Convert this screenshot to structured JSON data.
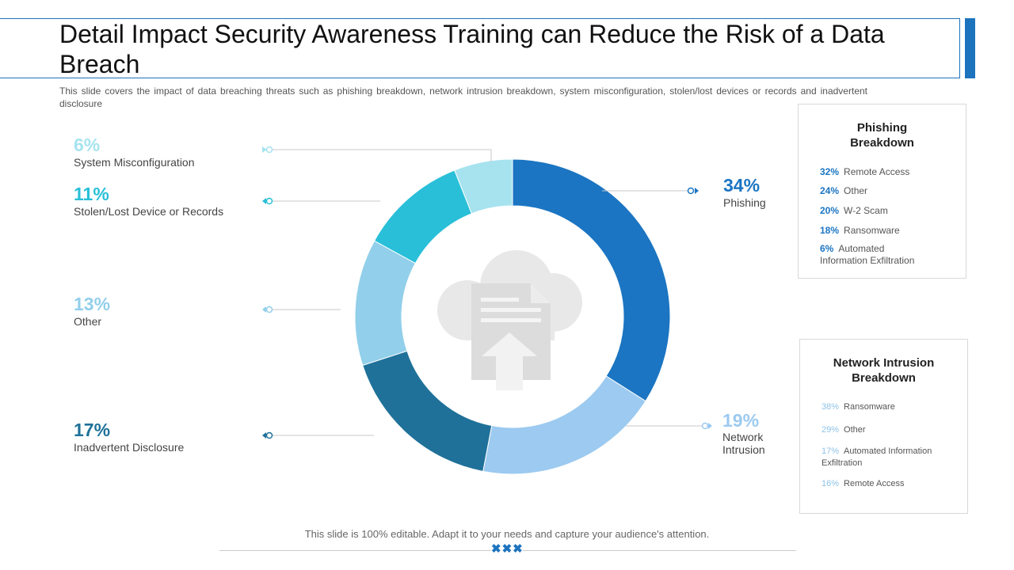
{
  "title": "Detail Impact Security Awareness Training can Reduce the Risk of a Data Breach",
  "subtitle": "This slide covers the impact of data breaching threats such as phishing breakdown, network intrusion breakdown, system misconfiguration, stolen/lost devices or records and inadvertent disclosure",
  "chart_data": {
    "type": "pie",
    "donut": true,
    "series": [
      {
        "name": "Phishing",
        "value": 34,
        "label": "34%",
        "color": "#1b75c2"
      },
      {
        "name": "Network Intrusion",
        "value": 19,
        "label": "19%",
        "color": "#9ccaf0"
      },
      {
        "name": "Inadvertent Disclosure",
        "value": 17,
        "label": "17%",
        "color": "#1f7199"
      },
      {
        "name": "Other",
        "value": 13,
        "label": "13%",
        "color": "#92cfea"
      },
      {
        "name": "Stolen/Lost Device or Records",
        "value": 11,
        "label": "11%",
        "color": "#29bfd8"
      },
      {
        "name": "System Misconfiguration",
        "value": 6,
        "label": "6%",
        "color": "#a6e3ef"
      }
    ]
  },
  "labels": {
    "phishing": {
      "pct": "34%",
      "name": "Phishing"
    },
    "network": {
      "pct": "19%",
      "name_line1": "Network",
      "name_line2": "Intrusion"
    },
    "inadvertent": {
      "pct": "17%",
      "name": "Inadvertent Disclosure"
    },
    "other": {
      "pct": "13%",
      "name": "Other"
    },
    "stolen": {
      "pct": "11%",
      "name": "Stolen/Lost Device or Records"
    },
    "sysmis": {
      "pct": "6%",
      "name": "System Misconfiguration"
    }
  },
  "phishing_card": {
    "title_line1": "Phishing",
    "title_line2": "Breakdown",
    "rows": [
      {
        "value": "32%",
        "label": "Remote Access"
      },
      {
        "value": "24%",
        "label": "Other"
      },
      {
        "value": "20%",
        "label": "W-2 Scam"
      },
      {
        "value": "18%",
        "label": "Ransomware"
      },
      {
        "value": "6%",
        "label": "Automated",
        "label2": "Information Exfiltration"
      }
    ]
  },
  "network_card": {
    "title_line1": "Network Intrusion",
    "title_line2": "Breakdown",
    "rows": [
      {
        "value": "38%",
        "label": "Ransomware"
      },
      {
        "value": "29%",
        "label": "Other"
      },
      {
        "value": "17%",
        "label": "Automated Information",
        "label2": "Exfiltration"
      },
      {
        "value": "16%",
        "label": "Remote Access"
      }
    ]
  },
  "footer": {
    "text": "This slide is 100% editable. Adapt it to your needs and capture your audience's attention.",
    "mark": "✖✖✖"
  },
  "colors": {
    "accent": "#1e73be",
    "icon": "#e6e6e6"
  }
}
